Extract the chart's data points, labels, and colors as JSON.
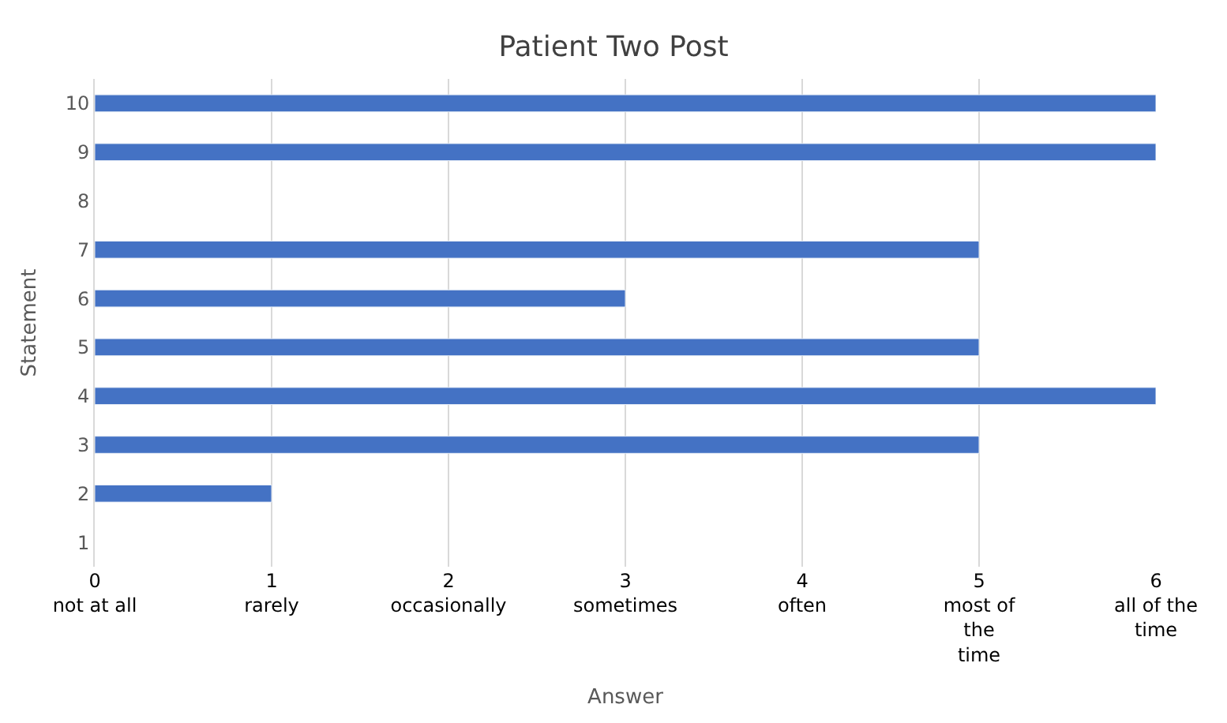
{
  "chart_data": {
    "type": "bar",
    "orientation": "horizontal",
    "title": "Patient Two Post",
    "xlabel": "Answer",
    "ylabel": "Statement",
    "categories": [
      "10",
      "9",
      "8",
      "7",
      "6",
      "5",
      "4",
      "3",
      "2",
      "1"
    ],
    "values": [
      6,
      6,
      null,
      5,
      3,
      5,
      6,
      5,
      1,
      null
    ],
    "color": "#4472c4",
    "xlim": [
      0,
      6
    ],
    "xticks": [
      {
        "value": 0,
        "label": "0\nnot at all"
      },
      {
        "value": 1,
        "label": "1\nrarely"
      },
      {
        "value": 2,
        "label": "2\noccasionally"
      },
      {
        "value": 3,
        "label": "3\nsometimes"
      },
      {
        "value": 4,
        "label": "4\noften"
      },
      {
        "value": 5,
        "label": "5\nmost of\nthe\ntime"
      },
      {
        "value": 6,
        "label": "6\nall of the\ntime"
      }
    ],
    "grid": "x"
  }
}
